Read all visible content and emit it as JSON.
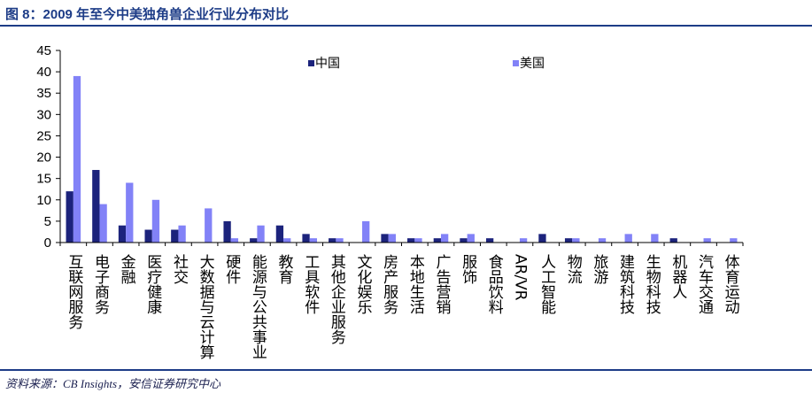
{
  "title": "图 8：2009 年至今中美独角兽企业行业分布对比",
  "source": "资料来源：CB Insights，安信证券研究中心",
  "colors": {
    "title": "#1d3c87",
    "rule": "#1d3c87",
    "axis": "#000000",
    "text": "#000000"
  },
  "chart_data": {
    "type": "bar",
    "categories": [
      "互联网服务",
      "电子商务",
      "金融",
      "医疗健康",
      "社交",
      "大数据与云计算",
      "硬件",
      "能源与公共事业",
      "教育",
      "工具软件",
      "其他企业服务",
      "文化娱乐",
      "房产服务",
      "本地生活",
      "广告营销",
      "服饰",
      "食品饮料",
      "AR/VR",
      "人工智能",
      "物流",
      "旅游",
      "建筑科技",
      "生物科技",
      "机器人",
      "汽车交通",
      "体育运动"
    ],
    "series": [
      {
        "name": "中国",
        "color": "#1c237c",
        "values": [
          12,
          17,
          4,
          3,
          3,
          0,
          5,
          1,
          4,
          2,
          1,
          0,
          2,
          1,
          1,
          1,
          1,
          0,
          2,
          1,
          0,
          0,
          0,
          1,
          0,
          0
        ]
      },
      {
        "name": "美国",
        "color": "#8282f7",
        "values": [
          39,
          9,
          14,
          10,
          4,
          8,
          1,
          4,
          1,
          1,
          1,
          5,
          2,
          1,
          2,
          2,
          0,
          1,
          0,
          1,
          1,
          2,
          2,
          0,
          1,
          1
        ]
      }
    ],
    "ylim": [
      0,
      45
    ],
    "yticks": [
      0,
      5,
      10,
      15,
      20,
      25,
      30,
      35,
      40,
      45
    ],
    "grid": false,
    "legend_position": "top-center"
  }
}
